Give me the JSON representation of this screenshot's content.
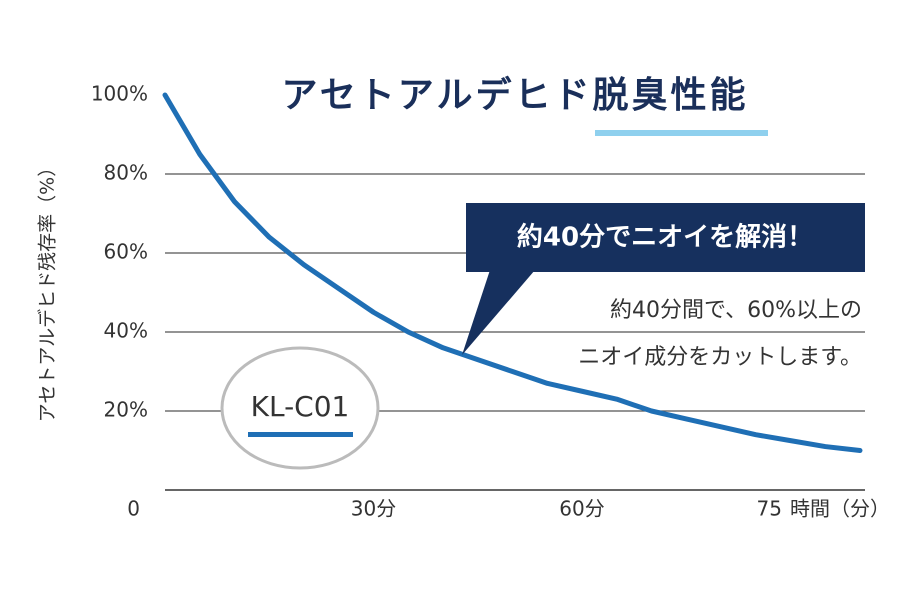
{
  "chart_data": {
    "type": "line",
    "title": "アセトアルデヒド脱臭性能",
    "y_label": "アセトアルデヒド残存率（%）",
    "x_label": "時間（分）",
    "x": [
      0,
      5,
      10,
      15,
      20,
      25,
      30,
      35,
      40,
      45,
      50,
      55,
      60,
      65,
      70,
      75,
      80,
      85,
      90,
      95,
      100
    ],
    "values": [
      100,
      85,
      73,
      64,
      57,
      51,
      45,
      40,
      36,
      33,
      30,
      27,
      25,
      23,
      20,
      18,
      16,
      14,
      12.5,
      11,
      10
    ],
    "color": "#1f6fb5",
    "xlim": [
      0,
      100
    ],
    "xticks": [
      {
        "value": 30,
        "label": "30分"
      },
      {
        "value": 60,
        "label": "60分"
      },
      {
        "value": 75,
        "label": "75"
      }
    ],
    "ylim": [
      0,
      100
    ],
    "yticks": [
      0,
      {
        "value": 20,
        "label": "20%"
      },
      {
        "value": 40,
        "label": "40%"
      },
      {
        "value": 60,
        "label": "60%"
      },
      {
        "value": 80,
        "label": "80%"
      },
      {
        "value": 100,
        "label": "100%"
      }
    ],
    "grid": true,
    "callout": "約40分でニオイを解消！",
    "annotations": [
      "約40分間で、60%以上の",
      "ニオイ成分をカットします。"
    ],
    "badge": "KL-C01"
  }
}
